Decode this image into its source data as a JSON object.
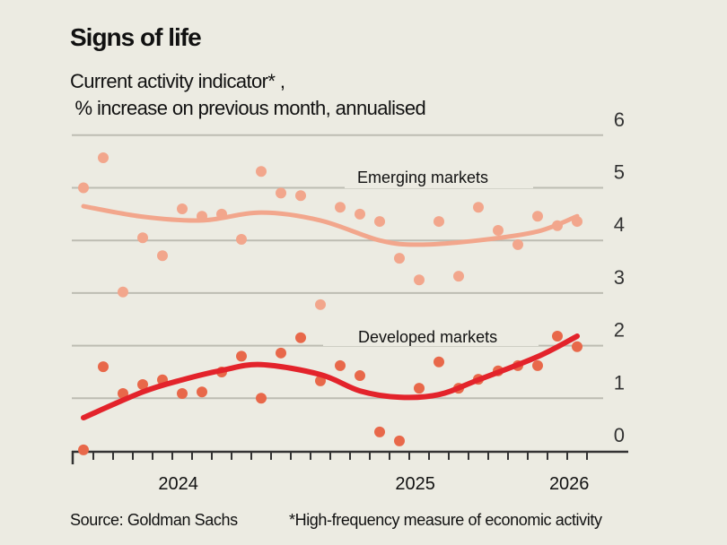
{
  "chart_data": {
    "type": "scatter",
    "title": "Signs of life",
    "subtitle_line1": "Current activity indicator* ,",
    "subtitle_line2": " % increase on previous month, annualised",
    "xlabel": "",
    "ylabel": "",
    "x_unit": "month index (monthly observations)",
    "ylim": [
      0,
      6
    ],
    "yticks": [
      "0",
      "1",
      "2",
      "3",
      "4",
      "5",
      "6"
    ],
    "y_axis_position": "right",
    "grid": true,
    "x_tick_labels": [
      {
        "label": "2024",
        "at": 4.8
      },
      {
        "label": "2025",
        "at": 16.8
      },
      {
        "label": "2026",
        "at": 24.6
      }
    ],
    "series": [
      {
        "name": "Emerging markets",
        "color": "#f2a68c",
        "points": [
          5.0,
          5.57,
          3.02,
          4.05,
          3.71,
          4.6,
          4.46,
          4.5,
          4.02,
          5.31,
          4.9,
          4.85,
          2.78,
          4.63,
          4.5,
          4.36,
          3.66,
          3.25,
          4.36,
          3.32,
          4.63,
          4.19,
          3.92,
          4.46,
          4.28,
          4.36
        ],
        "trend": [
          [
            0,
            4.65
          ],
          [
            3,
            4.45
          ],
          [
            6,
            4.38
          ],
          [
            9,
            4.53
          ],
          [
            12,
            4.38
          ],
          [
            15,
            4.0
          ],
          [
            17,
            3.92
          ],
          [
            20,
            4.0
          ],
          [
            23,
            4.17
          ],
          [
            25,
            4.46
          ]
        ]
      },
      {
        "name": "Developed markets",
        "color": "#e8684a",
        "trend_color": "#e3232b",
        "points": [
          0.02,
          1.6,
          1.09,
          1.26,
          1.35,
          1.09,
          1.12,
          1.5,
          1.8,
          1.0,
          1.86,
          2.15,
          1.33,
          1.62,
          1.43,
          0.36,
          0.19,
          1.19,
          1.69,
          1.19,
          1.36,
          1.52,
          1.62,
          1.62,
          2.18,
          1.98
        ],
        "trend": [
          [
            0,
            0.63
          ],
          [
            3,
            1.12
          ],
          [
            5,
            1.35
          ],
          [
            7,
            1.53
          ],
          [
            9,
            1.64
          ],
          [
            12,
            1.45
          ],
          [
            14,
            1.14
          ],
          [
            16,
            1.02
          ],
          [
            18,
            1.07
          ],
          [
            20,
            1.35
          ],
          [
            23,
            1.79
          ],
          [
            25,
            2.18
          ]
        ]
      }
    ]
  },
  "footer": {
    "source": "Source: Goldman Sachs",
    "note": "*High-frequency measure of economic activity"
  }
}
